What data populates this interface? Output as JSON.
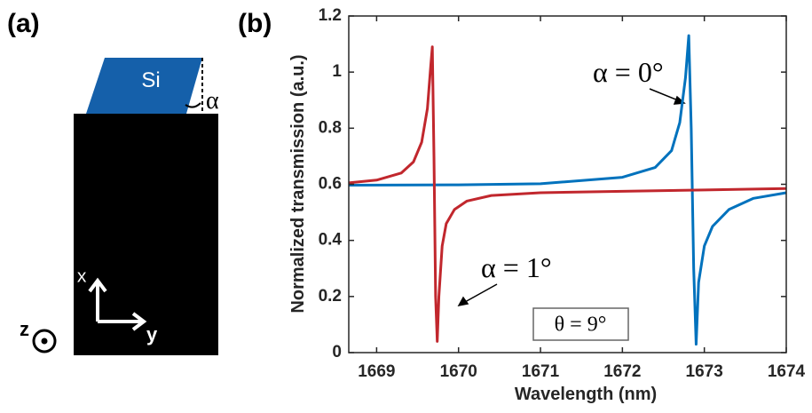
{
  "panel_a": {
    "label": "(a)",
    "material": "Si",
    "angle": "α",
    "axes": {
      "x": "x",
      "y": "y",
      "z": "z"
    }
  },
  "panel_b_label": "(b)",
  "chart_data": {
    "type": "line",
    "x_label": "Wavelength (nm)",
    "y_label": "Normalized transmission (a.u.)",
    "xlim": [
      1668.66,
      1674
    ],
    "ylim": [
      0,
      1.2
    ],
    "xticks": [
      1669,
      1670,
      1671,
      1672,
      1673,
      1674
    ],
    "yticks": [
      0,
      0.2,
      0.4,
      0.6,
      0.8,
      1,
      1.2
    ],
    "annotation": "θ = 9°",
    "series": [
      {
        "name": "α = 0°",
        "color": "#0072bd",
        "x": [
          1668.66,
          1670,
          1671,
          1672,
          1672.4,
          1672.6,
          1672.7,
          1672.77,
          1672.81,
          1672.84,
          1672.87,
          1672.9,
          1672.93,
          1673,
          1673.1,
          1673.3,
          1673.6,
          1674
        ],
        "values": [
          0.597,
          0.598,
          0.602,
          0.625,
          0.66,
          0.72,
          0.82,
          0.98,
          1.13,
          0.8,
          0.3,
          0.03,
          0.25,
          0.38,
          0.45,
          0.51,
          0.55,
          0.57
        ]
      },
      {
        "name": "α = 1°",
        "color": "#c1272d",
        "x": [
          1668.66,
          1669,
          1669.3,
          1669.45,
          1669.55,
          1669.62,
          1669.66,
          1669.68,
          1669.7,
          1669.72,
          1669.74,
          1669.76,
          1669.8,
          1669.85,
          1669.95,
          1670.1,
          1670.4,
          1671,
          1672,
          1673,
          1674
        ],
        "values": [
          0.605,
          0.615,
          0.64,
          0.68,
          0.75,
          0.87,
          1.02,
          1.09,
          0.7,
          0.2,
          0.04,
          0.2,
          0.38,
          0.46,
          0.51,
          0.54,
          0.56,
          0.57,
          0.575,
          0.58,
          0.585
        ]
      }
    ]
  }
}
